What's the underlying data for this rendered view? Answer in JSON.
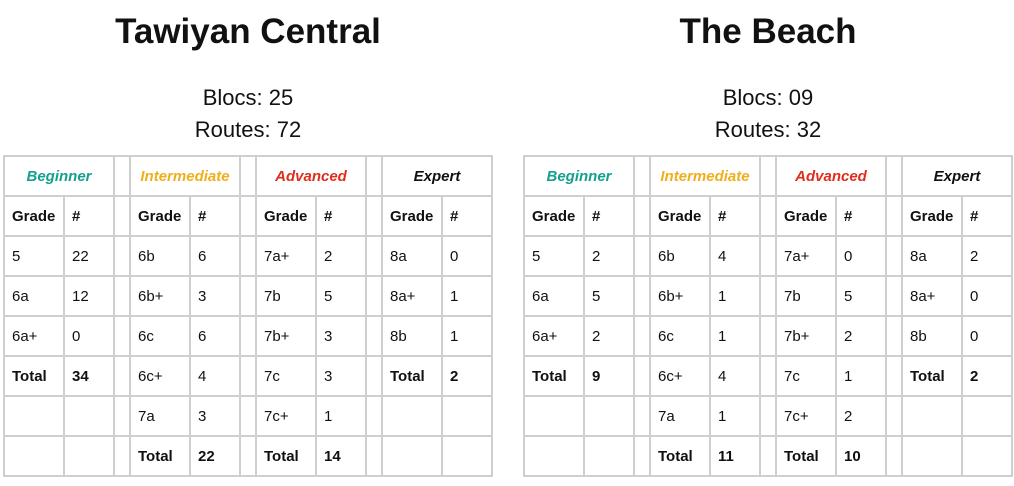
{
  "panels": [
    {
      "title": "Tawiyan Central",
      "blocs": "Blocs: 25",
      "routes": "Routes: 72",
      "groups": [
        {
          "name": "Beginner",
          "grade_header": "Grade",
          "count_header": "#",
          "rows": [
            [
              "5",
              "22"
            ],
            [
              "6a",
              "12"
            ],
            [
              "6a+",
              "0"
            ]
          ],
          "total": [
            "Total",
            "34"
          ]
        },
        {
          "name": "Intermediate",
          "grade_header": "Grade",
          "count_header": "#",
          "rows": [
            [
              "6b",
              "6"
            ],
            [
              "6b+",
              "3"
            ],
            [
              "6c",
              "6"
            ],
            [
              "6c+",
              "4"
            ],
            [
              "7a",
              "3"
            ]
          ],
          "total": [
            "Total",
            "22"
          ]
        },
        {
          "name": "Advanced",
          "grade_header": "Grade",
          "count_header": "#",
          "rows": [
            [
              "7a+",
              "2"
            ],
            [
              "7b",
              "5"
            ],
            [
              "7b+",
              "3"
            ],
            [
              "7c",
              "3"
            ],
            [
              "7c+",
              "1"
            ]
          ],
          "total": [
            "Total",
            "14"
          ]
        },
        {
          "name": "Expert",
          "grade_header": "Grade",
          "count_header": "#",
          "rows": [
            [
              "8a",
              "0"
            ],
            [
              "8a+",
              "1"
            ],
            [
              "8b",
              "1"
            ]
          ],
          "total": [
            "Total",
            "2"
          ]
        }
      ]
    },
    {
      "title": "The Beach",
      "blocs": "Blocs: 09",
      "routes": "Routes: 32",
      "groups": [
        {
          "name": "Beginner",
          "grade_header": "Grade",
          "count_header": "#",
          "rows": [
            [
              "5",
              "2"
            ],
            [
              "6a",
              "5"
            ],
            [
              "6a+",
              "2"
            ]
          ],
          "total": [
            "Total",
            "9"
          ]
        },
        {
          "name": "Intermediate",
          "grade_header": "Grade",
          "count_header": "#",
          "rows": [
            [
              "6b",
              "4"
            ],
            [
              "6b+",
              "1"
            ],
            [
              "6c",
              "1"
            ],
            [
              "6c+",
              "4"
            ],
            [
              "7a",
              "1"
            ]
          ],
          "total": [
            "Total",
            "11"
          ]
        },
        {
          "name": "Advanced",
          "grade_header": "Grade",
          "count_header": "#",
          "rows": [
            [
              "7a+",
              "0"
            ],
            [
              "7b",
              "5"
            ],
            [
              "7b+",
              "2"
            ],
            [
              "7c",
              "1"
            ],
            [
              "7c+",
              "2"
            ]
          ],
          "total": [
            "Total",
            "10"
          ]
        },
        {
          "name": "Expert",
          "grade_header": "Grade",
          "count_header": "#",
          "rows": [
            [
              "8a",
              "2"
            ],
            [
              "8a+",
              "0"
            ],
            [
              "8b",
              "0"
            ]
          ],
          "total": [
            "Total",
            "2"
          ]
        }
      ]
    }
  ]
}
